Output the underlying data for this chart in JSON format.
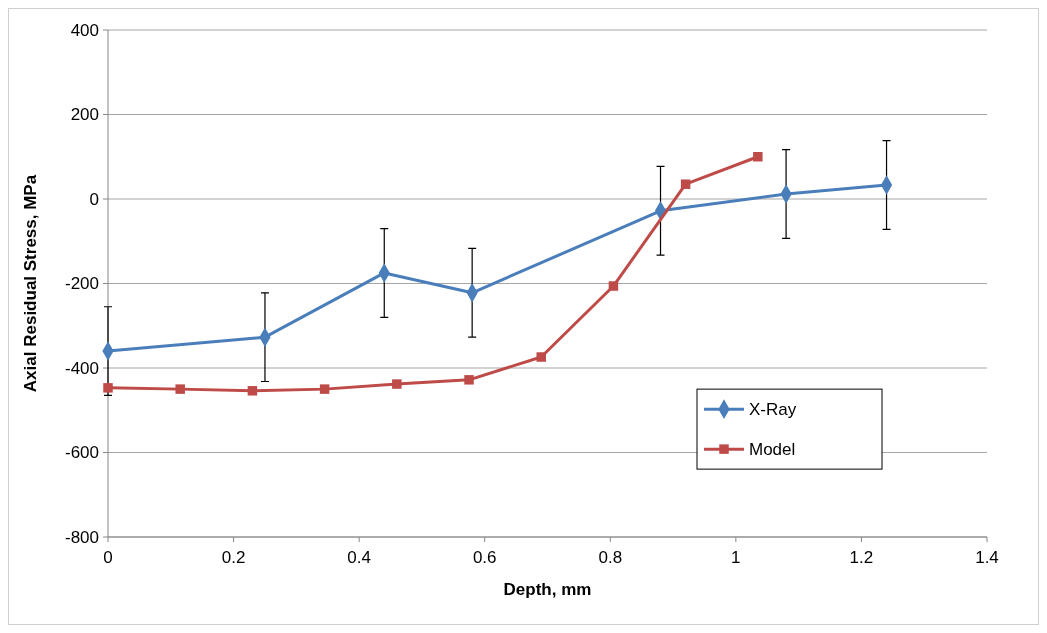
{
  "chart_data": {
    "type": "line",
    "xlabel": "Depth, mm",
    "ylabel": "Axial Residual Stress, MPa",
    "xlim": [
      0,
      1.4
    ],
    "xticks": [
      0,
      0.2,
      0.4,
      0.6,
      0.8,
      1,
      1.2,
      1.4
    ],
    "ylim": [
      -800,
      400
    ],
    "yticks": [
      -800,
      -600,
      -400,
      -200,
      0,
      200,
      400
    ],
    "grid": "y",
    "legend": "right",
    "series": [
      {
        "name": "X-Ray",
        "color": "#4a7ebb",
        "marker": "diamond",
        "x": [
          0,
          0.25,
          0.44,
          0.58,
          0.88,
          1.08,
          1.24
        ],
        "values": [
          -360,
          -327,
          -175,
          -222,
          -28,
          12,
          33
        ],
        "errors": [
          105,
          105,
          105,
          105,
          105,
          105,
          105
        ]
      },
      {
        "name": "Model",
        "color": "#be4b48",
        "marker": "square",
        "x": [
          0,
          0.115,
          0.23,
          0.345,
          0.46,
          0.575,
          0.69,
          0.805,
          0.92,
          1.035
        ],
        "values": [
          -447,
          -450,
          -454,
          -450,
          -438,
          -428,
          -374,
          -206,
          35,
          100
        ]
      }
    ]
  }
}
